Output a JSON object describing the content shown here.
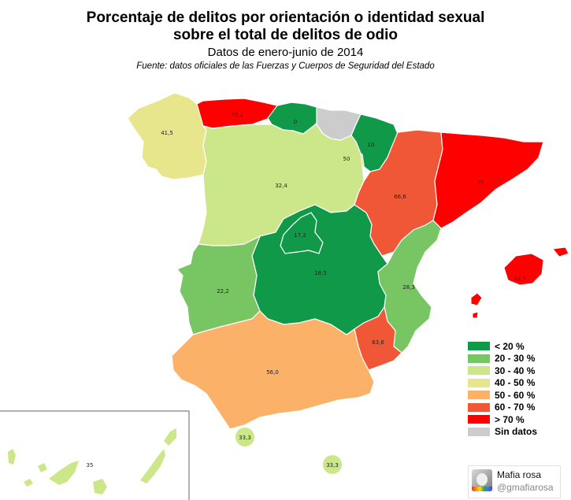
{
  "title_line1": "Porcentaje de delitos por orientación o identidad sexual",
  "title_line2": "sobre el total de delitos de odio",
  "subtitle": "Datos de enero-junio de 2014",
  "source": "Fuente: datos oficiales de las Fuerzas y Cuerpos de Seguridad del Estado",
  "colors": {
    "lt20": "#11994a",
    "20_30": "#78c564",
    "30_40": "#cce68a",
    "40_50": "#e8e68c",
    "50_60": "#fbb168",
    "60_70": "#ef5736",
    "gt70": "#ff0000",
    "nodata": "#cccccc"
  },
  "regions": {
    "galicia": {
      "value": "41,5"
    },
    "asturias": {
      "value": "72,2"
    },
    "cantabria": {
      "value": "0"
    },
    "pais_vasco": {
      "value": ""
    },
    "navarra": {
      "value": "10"
    },
    "la_rioja": {
      "value": "50"
    },
    "aragon": {
      "value": "66,6"
    },
    "cataluna": {
      "value": "75"
    },
    "castilla_leon": {
      "value": "32,4"
    },
    "madrid": {
      "value": "17,2"
    },
    "castilla_la_mancha": {
      "value": "18,5"
    },
    "extremadura": {
      "value": "22,2"
    },
    "valencia": {
      "value": "28,3"
    },
    "murcia": {
      "value": "63,6"
    },
    "andalucia": {
      "value": "56,0"
    },
    "baleares": {
      "value": "72,7"
    },
    "canarias": {
      "value": "35"
    },
    "ceuta": {
      "value": "33,3"
    },
    "melilla": {
      "value": "33,3"
    }
  },
  "legend": [
    {
      "label": "< 20 %",
      "color": "#11994a"
    },
    {
      "label": "20 - 30 %",
      "color": "#78c564"
    },
    {
      "label": "30 - 40 %",
      "color": "#cce68a"
    },
    {
      "label": "40 - 50 %",
      "color": "#e8e68c"
    },
    {
      "label": "50 - 60 %",
      "color": "#fbb168"
    },
    {
      "label": "60 - 70 %",
      "color": "#ef5736"
    },
    {
      "label": "> 70 %",
      "color": "#ff0000"
    },
    {
      "label": "Sin datos",
      "color": "#cccccc"
    }
  ],
  "credit": {
    "name": "Mafia rosa",
    "handle": "@gmafiarosa"
  }
}
